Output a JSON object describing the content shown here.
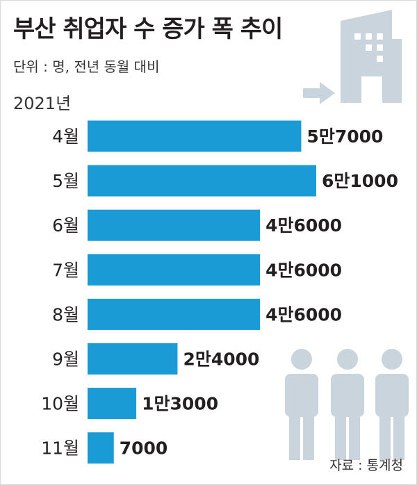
{
  "header": {
    "title": "부산 취업자 수 증가 폭 추이",
    "unit": "단위 : 명, 전년 동월 대비",
    "year": "2021년"
  },
  "footer": {
    "source": "자료 : 통계청"
  },
  "colors": {
    "bar": "#1a9bd6",
    "icon": "#c9d4dd",
    "text": "#231f20"
  },
  "icons": [
    "building-icon",
    "arrow-right-icon",
    "people-icon"
  ],
  "chart_data": {
    "type": "bar",
    "orientation": "horizontal",
    "categories": [
      "4월",
      "5월",
      "6월",
      "7월",
      "8월",
      "9월",
      "10월",
      "11월"
    ],
    "values": [
      57000,
      61000,
      46000,
      46000,
      46000,
      24000,
      13000,
      7000
    ],
    "value_labels": [
      "5만7000",
      "6만1000",
      "4만6000",
      "4만6000",
      "4만6000",
      "2만4000",
      "1만3000",
      "7000"
    ],
    "title": "부산 취업자 수 증가 폭 추이",
    "xlim": [
      0,
      61000
    ],
    "grid": false,
    "legend": "none"
  }
}
